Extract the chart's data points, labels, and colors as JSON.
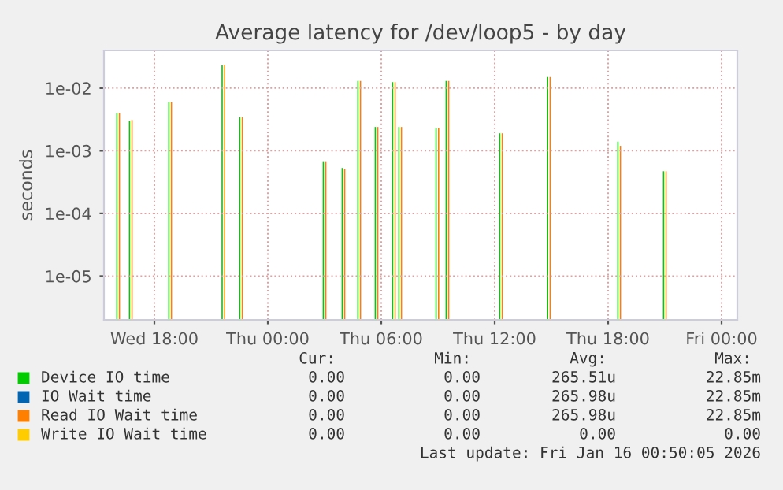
{
  "chart_data": {
    "type": "bar",
    "title": "Average latency for /dev/loop5 - by day",
    "ylabel": "seconds",
    "x": [
      "2026-01-14T16:07",
      "2026-01-14T16:47",
      "2026-01-14T18:52",
      "2026-01-14T21:41",
      "2026-01-14T22:37",
      "2026-01-15T03:02",
      "2026-01-15T04:02",
      "2026-01-15T04:52",
      "2026-01-15T05:47",
      "2026-01-15T06:42",
      "2026-01-15T07:02",
      "2026-01-15T09:00",
      "2026-01-15T09:32",
      "2026-01-15T12:22",
      "2026-01-15T14:54",
      "2026-01-15T18:37",
      "2026-01-15T21:02"
    ],
    "series": [
      {
        "name": "Device IO time",
        "color": "#00cc00",
        "values": [
          0.004,
          0.003,
          0.006,
          0.023,
          0.0034,
          0.00066,
          0.00053,
          0.013,
          0.0024,
          0.0125,
          0.0024,
          0.0023,
          0.013,
          0.0019,
          0.015,
          0.0014,
          0.00047
        ]
      },
      {
        "name": "IO Wait time",
        "color": "#0066b3",
        "values": [
          null,
          null,
          null,
          null,
          null,
          null,
          null,
          null,
          null,
          null,
          null,
          null,
          null,
          null,
          null,
          null,
          null
        ]
      },
      {
        "name": "Read IO Wait time",
        "color": "#ff8000",
        "values": [
          0.004,
          0.0031,
          0.006,
          0.0235,
          0.0034,
          0.00066,
          0.00051,
          0.013,
          0.0024,
          0.0125,
          0.0024,
          0.0023,
          0.013,
          0.0019,
          0.015,
          0.0012,
          0.00047
        ]
      },
      {
        "name": "Write IO Wait time",
        "color": "#ffcc00",
        "values": [
          null,
          null,
          null,
          null,
          null,
          null,
          null,
          null,
          null,
          null,
          null,
          null,
          null,
          null,
          null,
          null,
          null
        ]
      }
    ],
    "log": "y",
    "ylim": [
      2e-06,
      0.04
    ],
    "yticks": [
      {
        "value": 1e-05,
        "label": "1e-05"
      },
      {
        "value": 0.0001,
        "label": "1e-04"
      },
      {
        "value": 0.001,
        "label": "1e-03"
      },
      {
        "value": 0.01,
        "label": "1e-02"
      }
    ],
    "xlim": [
      "2026-01-14T15:20",
      "2026-01-16T00:50"
    ],
    "xticks": [
      {
        "value": "2026-01-14T18:00",
        "label": "Wed 18:00"
      },
      {
        "value": "2026-01-15T00:00",
        "label": "Thu 00:00"
      },
      {
        "value": "2026-01-15T06:00",
        "label": "Thu 06:00"
      },
      {
        "value": "2026-01-15T12:00",
        "label": "Thu 12:00"
      },
      {
        "value": "2026-01-15T18:00",
        "label": "Thu 18:00"
      },
      {
        "value": "2026-01-16T00:00",
        "label": "Fri 00:00"
      }
    ],
    "grid": true,
    "legend": "bottom",
    "annotations": [
      "Cur:",
      "Min:",
      "Avg:",
      "Max:",
      "0.00",
      "0.00",
      "265.51u",
      "22.85m",
      "0.00",
      "0.00",
      "265.98u",
      "22.85m",
      "0.00",
      "0.00",
      "265.98u",
      "22.85m",
      "0.00",
      "0.00",
      "0.00",
      "0.00",
      "Last update: Fri Jan 16 00:50:05 2026"
    ]
  }
}
